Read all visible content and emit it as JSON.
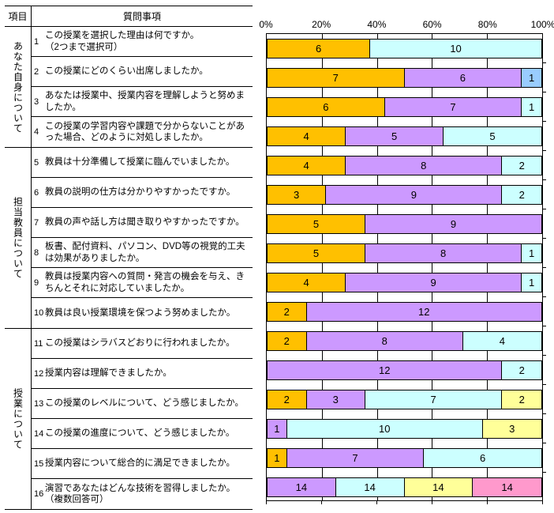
{
  "table": {
    "header": {
      "item": "項目",
      "question": "質問事項"
    },
    "groups": [
      {
        "label": "あなた自身について",
        "questions": [
          {
            "no": "1",
            "text": "この授業を選択した理由は何ですか。\n（2つまで選択可）"
          },
          {
            "no": "2",
            "text": "この授業にどのくらい出席しましたか。"
          },
          {
            "no": "3",
            "text": "あなたは授業中、授業内容を理解しようと努めましたか。"
          },
          {
            "no": "4",
            "text": "この授業の学習内容や課題で分からないことがあった場合、どのように対処しましたか。"
          }
        ]
      },
      {
        "label": "担当教員について",
        "questions": [
          {
            "no": "5",
            "text": "教員は十分準備して授業に臨んでいましたか。"
          },
          {
            "no": "6",
            "text": "教員の説明の仕方は分かりやすかったですか。"
          },
          {
            "no": "7",
            "text": "教員の声や話し方は聞き取りやすかったですか。"
          },
          {
            "no": "8",
            "text": "板書、配付資料、パソコン、DVD等の視覚的工夫は効果がありましたか。"
          },
          {
            "no": "9",
            "text": "教員は授業内容への質問・発言の機会を与え、きちんとそれに対応していましたか。"
          },
          {
            "no": "10",
            "text": "教員は良い授業環境を保つよう努めましたか。"
          }
        ]
      },
      {
        "label": "授業について",
        "questions": [
          {
            "no": "11",
            "text": "この授業はシラバスどおりに行われましたか。"
          },
          {
            "no": "12",
            "text": "授業内容は理解できましたか。"
          },
          {
            "no": "13",
            "text": "この授業のレベルについて、どう感じましたか。"
          },
          {
            "no": "14",
            "text": "この授業の進度について、どう感じましたか。"
          },
          {
            "no": "15",
            "text": "授業内容について総合的に満足できましたか。"
          },
          {
            "no": "16",
            "text": "演習であなたはどんな技術を習得しましたか。\n（複数回答可）"
          }
        ]
      }
    ]
  },
  "chart_data": {
    "type": "bar",
    "orientation": "horizontal-stacked-100pct",
    "axis_ticks": [
      "0%",
      "20%",
      "40%",
      "60%",
      "80%",
      "100%"
    ],
    "xlim": [
      0,
      100
    ],
    "grid": true,
    "legend": "none",
    "colors": {
      "orange": "#FFC000",
      "purple": "#CC99FF",
      "cyan": "#CCFFFF",
      "blue": "#99CCFF",
      "yellow": "#FFFF99",
      "pink": "#FF99CC"
    },
    "rows": [
      {
        "question_no": "1",
        "segments": [
          {
            "value": 6,
            "color": "orange"
          },
          {
            "value": 10,
            "color": "cyan"
          }
        ]
      },
      {
        "question_no": "2",
        "segments": [
          {
            "value": 7,
            "color": "orange"
          },
          {
            "value": 6,
            "color": "purple"
          },
          {
            "value": 1,
            "color": "blue"
          }
        ]
      },
      {
        "question_no": "3",
        "segments": [
          {
            "value": 6,
            "color": "orange"
          },
          {
            "value": 7,
            "color": "purple"
          },
          {
            "value": 1,
            "color": "cyan"
          }
        ]
      },
      {
        "question_no": "4",
        "segments": [
          {
            "value": 4,
            "color": "orange"
          },
          {
            "value": 5,
            "color": "purple"
          },
          {
            "value": 5,
            "color": "cyan"
          }
        ]
      },
      {
        "question_no": "5",
        "segments": [
          {
            "value": 4,
            "color": "orange"
          },
          {
            "value": 8,
            "color": "purple"
          },
          {
            "value": 2,
            "color": "cyan"
          }
        ]
      },
      {
        "question_no": "6",
        "segments": [
          {
            "value": 3,
            "color": "orange"
          },
          {
            "value": 9,
            "color": "purple"
          },
          {
            "value": 2,
            "color": "cyan"
          }
        ]
      },
      {
        "question_no": "7",
        "segments": [
          {
            "value": 5,
            "color": "orange"
          },
          {
            "value": 9,
            "color": "purple"
          }
        ]
      },
      {
        "question_no": "8",
        "segments": [
          {
            "value": 5,
            "color": "orange"
          },
          {
            "value": 8,
            "color": "purple"
          },
          {
            "value": 1,
            "color": "cyan"
          }
        ]
      },
      {
        "question_no": "9",
        "segments": [
          {
            "value": 4,
            "color": "orange"
          },
          {
            "value": 9,
            "color": "purple"
          },
          {
            "value": 1,
            "color": "cyan"
          }
        ]
      },
      {
        "question_no": "10",
        "segments": [
          {
            "value": 2,
            "color": "orange"
          },
          {
            "value": 12,
            "color": "purple"
          }
        ]
      },
      {
        "question_no": "11",
        "segments": [
          {
            "value": 2,
            "color": "orange"
          },
          {
            "value": 8,
            "color": "purple"
          },
          {
            "value": 4,
            "color": "cyan"
          }
        ]
      },
      {
        "question_no": "12",
        "segments": [
          {
            "value": 12,
            "color": "purple"
          },
          {
            "value": 2,
            "color": "cyan"
          }
        ]
      },
      {
        "question_no": "13",
        "segments": [
          {
            "value": 2,
            "color": "orange"
          },
          {
            "value": 3,
            "color": "purple"
          },
          {
            "value": 7,
            "color": "cyan"
          },
          {
            "value": 2,
            "color": "yellow"
          }
        ]
      },
      {
        "question_no": "14",
        "segments": [
          {
            "value": 1,
            "color": "purple"
          },
          {
            "value": 10,
            "color": "cyan"
          },
          {
            "value": 3,
            "color": "yellow"
          }
        ]
      },
      {
        "question_no": "15",
        "segments": [
          {
            "value": 1,
            "color": "orange"
          },
          {
            "value": 7,
            "color": "purple"
          },
          {
            "value": 6,
            "color": "cyan"
          }
        ]
      },
      {
        "question_no": "16",
        "segments": [
          {
            "value": 14,
            "color": "purple"
          },
          {
            "value": 14,
            "color": "cyan"
          },
          {
            "value": 14,
            "color": "yellow"
          },
          {
            "value": 14,
            "color": "pink"
          }
        ]
      }
    ]
  }
}
